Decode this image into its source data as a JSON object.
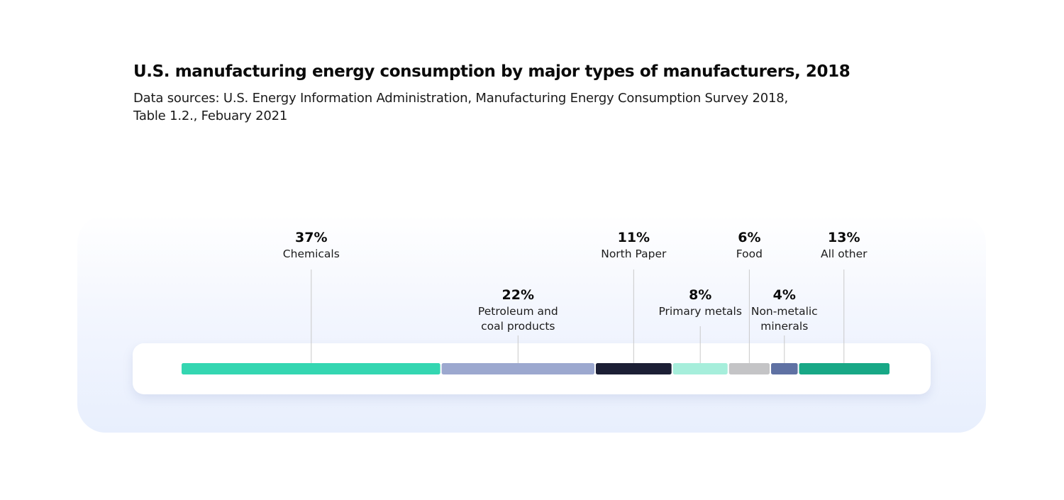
{
  "header": {
    "title": "U.S. manufacturing energy consumption by major types of manufacturers, 2018",
    "subtitle_line1": "Data sources: U.S. Energy Information Administration, Manufacturing Energy Consumption Survey 2018,",
    "subtitle_line2": "Table 1.2., Febuary 2021"
  },
  "chart_data": {
    "type": "bar",
    "title": "U.S. manufacturing energy consumption by major types of manufacturers, 2018",
    "subtitle": "Data sources: U.S. Energy Information Administration, Manufacturing Energy Consumption Survey 2018, Table 1.2., Febuary 2021",
    "unit": "%",
    "stacked": true,
    "segments": [
      {
        "label": "Chemicals",
        "label_lines": [
          "Chemicals"
        ],
        "value": 37,
        "value_text": "37%",
        "color": "#34d6b1",
        "label_row": "top"
      },
      {
        "label": "Petroleum and coal products",
        "label_lines": [
          "Petroleum and",
          "coal products"
        ],
        "value": 22,
        "value_text": "22%",
        "color": "#9ca8cf",
        "label_row": "bottom"
      },
      {
        "label": "North Paper",
        "label_lines": [
          "North Paper"
        ],
        "value": 11,
        "value_text": "11%",
        "color": "#1c1f35",
        "label_row": "top"
      },
      {
        "label": "Primary metals",
        "label_lines": [
          "Primary metals"
        ],
        "value": 8,
        "value_text": "8%",
        "color": "#a6eedb",
        "label_row": "bottom"
      },
      {
        "label": "Food",
        "label_lines": [
          "Food"
        ],
        "value": 6,
        "value_text": "6%",
        "color": "#c4c4c6",
        "label_row": "top"
      },
      {
        "label": "Non-metalic minerals",
        "label_lines": [
          "Non-metalic",
          "minerals"
        ],
        "value": 4,
        "value_text": "4%",
        "color": "#5f71a3",
        "label_row": "bottom"
      },
      {
        "label": "All other",
        "label_lines": [
          "All other"
        ],
        "value": 13,
        "value_text": "13%",
        "color": "#18a886",
        "label_row": "top"
      }
    ]
  }
}
